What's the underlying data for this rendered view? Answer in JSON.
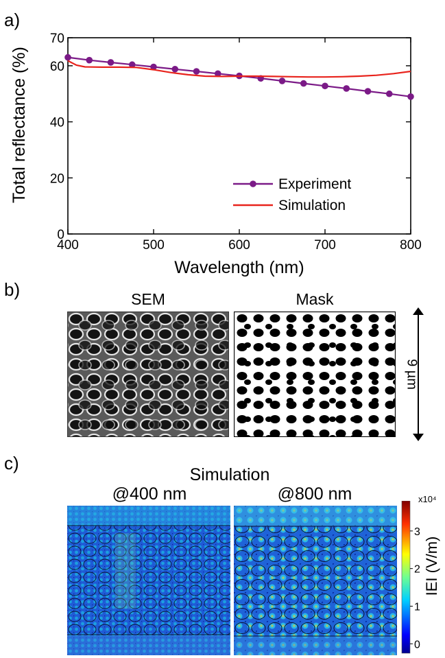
{
  "panels": {
    "a": "a)",
    "b": "b)",
    "c": "c)"
  },
  "chart_data": {
    "type": "line",
    "xlabel": "Wavelength (nm)",
    "ylabel": "Total reflectance (%)",
    "xlim": [
      400,
      800
    ],
    "ylim": [
      0,
      70
    ],
    "xticks": [
      400,
      500,
      600,
      700,
      800
    ],
    "yticks": [
      0,
      20,
      40,
      60,
      70
    ],
    "grid": false,
    "legend_position": "bottom-right",
    "series": [
      {
        "name": "Experiment",
        "color": "#7b1a87",
        "markers": true,
        "x": [
          400,
          425,
          450,
          475,
          500,
          525,
          550,
          575,
          600,
          625,
          650,
          675,
          700,
          725,
          750,
          775,
          800
        ],
        "y": [
          63.0,
          62.0,
          61.2,
          60.4,
          59.6,
          58.8,
          58.0,
          57.2,
          56.4,
          55.5,
          54.6,
          53.7,
          52.8,
          51.9,
          50.9,
          50.0,
          49.0
        ]
      },
      {
        "name": "Simulation",
        "color": "#e8231c",
        "markers": false,
        "x": [
          400,
          410,
          420,
          440,
          460,
          480,
          500,
          520,
          540,
          560,
          580,
          600,
          620,
          640,
          660,
          680,
          700,
          720,
          740,
          760,
          780,
          800
        ],
        "y": [
          61.8,
          60.2,
          59.6,
          59.5,
          59.5,
          59.4,
          58.6,
          57.6,
          56.8,
          56.3,
          56.2,
          56.3,
          56.3,
          56.2,
          56.1,
          56.0,
          56.0,
          56.1,
          56.3,
          56.6,
          57.2,
          58.0
        ]
      }
    ]
  },
  "sem_panel": {
    "sem_title": "SEM",
    "mask_title": "Mask",
    "scale_label": "9 µm"
  },
  "sim_panel": {
    "title": "Simulation",
    "left_title": "@400 nm",
    "right_title": "@800 nm",
    "colorbar_label": "IEI (V/m)",
    "colorbar_multiplier": "x10⁴",
    "colorbar_ticks": [
      "0",
      "1",
      "2",
      "3"
    ]
  }
}
